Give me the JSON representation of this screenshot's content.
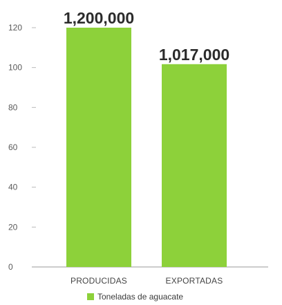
{
  "chart_data": {
    "type": "bar",
    "categories": [
      "PRODUCIDAS",
      "EXPORTADAS"
    ],
    "values": [
      120,
      101.7
    ],
    "data_labels": [
      "1,200,000",
      "1,017,000"
    ],
    "yticks": [
      "0",
      "20",
      "40",
      "60",
      "80",
      "100",
      "120"
    ],
    "ylim": [
      0,
      120
    ],
    "legend": {
      "label": "Toneladas de aguacate",
      "placement": "bottom"
    },
    "bar_color": "#8dd13a",
    "grid": false,
    "title": "",
    "xlabel": "",
    "ylabel": ""
  }
}
